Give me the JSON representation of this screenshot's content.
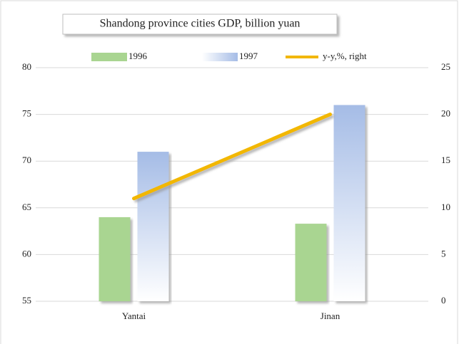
{
  "chart_data": {
    "type": "bar",
    "title": "Shandong province cities GDP, billion yuan",
    "categories": [
      "Yantai",
      "Jinan"
    ],
    "series": [
      {
        "name": "1996",
        "color": "#a9d591",
        "values": [
          64,
          63.3
        ]
      },
      {
        "name": "1997",
        "color": "#a5bce6",
        "values": [
          71,
          76
        ],
        "gradient": true
      },
      {
        "name": "y-y,%,   right",
        "color": "#f2b705",
        "values": [
          11,
          20
        ],
        "axis": "y2",
        "type": "line"
      }
    ],
    "ylim": [
      55,
      80
    ],
    "yticks": [
      55,
      60,
      65,
      70,
      75,
      80
    ],
    "y2lim": [
      0,
      25
    ],
    "y2ticks": [
      0,
      5,
      10,
      15,
      20,
      25
    ],
    "grid": true
  }
}
